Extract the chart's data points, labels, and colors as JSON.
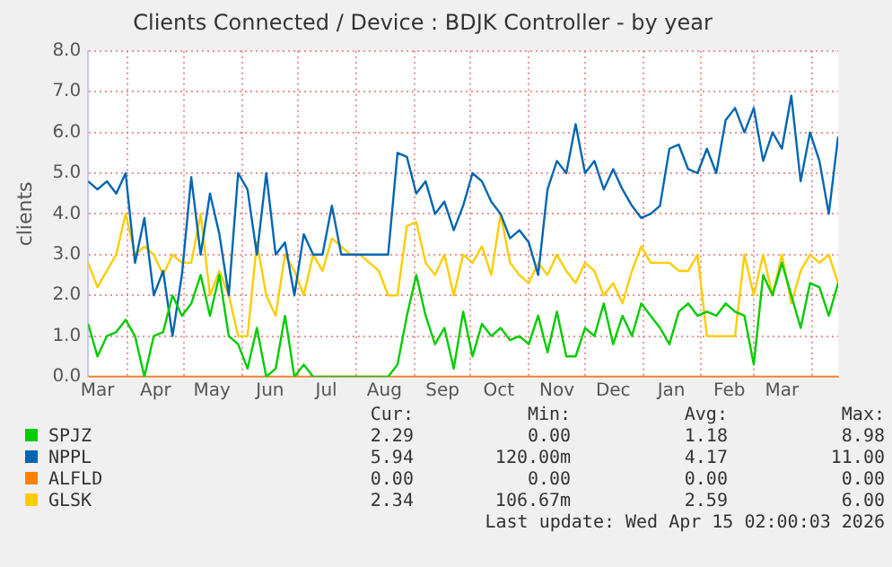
{
  "chart_data": {
    "type": "line",
    "title": "Clients Connected / Device : BDJK Controller - by year",
    "ylabel": "clients",
    "x": [
      "2025-03-11",
      "2025-03-16",
      "2025-03-21",
      "2025-03-26",
      "2025-03-31",
      "2025-04-05",
      "2025-04-10",
      "2025-04-15",
      "2025-04-20",
      "2025-04-25",
      "2025-04-30",
      "2025-05-05",
      "2025-05-10",
      "2025-05-15",
      "2025-05-20",
      "2025-05-25",
      "2025-05-30",
      "2025-06-04",
      "2025-06-09",
      "2025-06-14",
      "2025-06-19",
      "2025-06-24",
      "2025-06-29",
      "2025-07-04",
      "2025-07-09",
      "2025-07-14",
      "2025-07-19",
      "2025-07-24",
      "2025-07-29",
      "2025-08-03",
      "2025-08-08",
      "2025-08-13",
      "2025-08-18",
      "2025-08-23",
      "2025-08-28",
      "2025-09-02",
      "2025-09-07",
      "2025-09-12",
      "2025-09-17",
      "2025-09-22",
      "2025-09-27",
      "2025-10-02",
      "2025-10-07",
      "2025-10-12",
      "2025-10-17",
      "2025-10-22",
      "2025-10-27",
      "2025-11-01",
      "2025-11-06",
      "2025-11-11",
      "2025-11-16",
      "2025-11-21",
      "2025-11-26",
      "2025-12-01",
      "2025-12-06",
      "2025-12-11",
      "2025-12-16",
      "2025-12-21",
      "2025-12-26",
      "2025-12-31",
      "2026-01-05",
      "2026-01-10",
      "2026-01-15",
      "2026-01-20",
      "2026-01-25",
      "2026-01-30",
      "2026-02-04",
      "2026-02-09",
      "2026-02-14",
      "2026-02-19",
      "2026-02-24",
      "2026-03-01",
      "2026-03-06",
      "2026-03-11",
      "2026-03-16",
      "2026-03-21",
      "2026-03-26",
      "2026-03-31",
      "2026-04-05",
      "2026-04-10",
      "2026-04-15"
    ],
    "series": [
      {
        "name": "SPJZ",
        "color": "#00cc00",
        "values": [
          1.3,
          0.5,
          1.0,
          1.1,
          1.4,
          1.0,
          0.0,
          1.0,
          1.1,
          2.0,
          1.5,
          1.8,
          2.5,
          1.5,
          2.5,
          1.0,
          0.8,
          0.2,
          1.2,
          0.0,
          0.2,
          1.5,
          0.0,
          0.3,
          0.0,
          0.0,
          0.0,
          0.0,
          0.0,
          0.0,
          0.0,
          0.0,
          0.0,
          0.3,
          1.5,
          2.5,
          1.5,
          0.8,
          1.2,
          0.2,
          1.6,
          0.5,
          1.3,
          1.0,
          1.2,
          0.9,
          1.0,
          0.8,
          1.5,
          0.6,
          1.6,
          0.5,
          0.5,
          1.2,
          1.0,
          1.8,
          0.8,
          1.5,
          1.0,
          1.8,
          1.5,
          1.2,
          0.8,
          1.6,
          1.8,
          1.5,
          1.6,
          1.5,
          1.8,
          1.6,
          1.5,
          0.3,
          2.5,
          2.0,
          2.8,
          2.0,
          1.2,
          2.3,
          2.2,
          1.5,
          2.3
        ]
      },
      {
        "name": "NPPL",
        "color": "#0066b3",
        "values": [
          4.8,
          4.6,
          4.8,
          4.5,
          5.0,
          2.8,
          3.9,
          2.0,
          2.6,
          1.0,
          2.5,
          4.9,
          3.0,
          4.5,
          3.5,
          2.0,
          5.0,
          4.6,
          3.0,
          5.0,
          3.0,
          3.3,
          2.0,
          3.5,
          3.0,
          3.0,
          4.2,
          3.0,
          3.0,
          3.0,
          3.0,
          3.0,
          3.0,
          5.5,
          5.4,
          4.5,
          4.8,
          4.0,
          4.3,
          3.6,
          4.2,
          5.0,
          4.8,
          4.3,
          4.0,
          3.4,
          3.6,
          3.3,
          2.5,
          4.6,
          5.3,
          5.0,
          6.2,
          5.0,
          5.3,
          4.6,
          5.1,
          4.6,
          4.2,
          3.9,
          4.0,
          4.2,
          5.6,
          5.7,
          5.1,
          5.0,
          5.6,
          5.0,
          6.3,
          6.6,
          6.0,
          6.6,
          5.3,
          6.0,
          5.6,
          6.9,
          4.8,
          6.0,
          5.3,
          4.0,
          5.9
        ]
      },
      {
        "name": "ALFLD",
        "color": "#ff8000",
        "values": [
          0,
          0,
          0,
          0,
          0,
          0,
          0,
          0,
          0,
          0,
          0,
          0,
          0,
          0,
          0,
          0,
          0,
          0,
          0,
          0,
          0,
          0,
          0,
          0,
          0,
          0,
          0,
          0,
          0,
          0,
          0,
          0,
          0,
          0,
          0,
          0,
          0,
          0,
          0,
          0,
          0,
          0,
          0,
          0,
          0,
          0,
          0,
          0,
          0,
          0,
          0,
          0,
          0,
          0,
          0,
          0,
          0,
          0,
          0,
          0,
          0,
          0,
          0,
          0,
          0,
          0,
          0,
          0,
          0,
          0,
          0,
          0,
          0,
          0,
          0,
          0,
          0,
          0,
          0,
          0,
          0
        ]
      },
      {
        "name": "GLSK",
        "color": "#ffcc00",
        "values": [
          2.8,
          2.2,
          2.6,
          3.0,
          4.0,
          3.0,
          3.2,
          3.0,
          2.5,
          3.0,
          2.8,
          2.8,
          4.0,
          2.0,
          2.6,
          2.0,
          1.0,
          1.0,
          3.3,
          2.0,
          1.5,
          3.0,
          2.6,
          2.0,
          3.0,
          2.6,
          3.4,
          3.2,
          3.0,
          3.0,
          2.8,
          2.6,
          2.0,
          2.0,
          3.7,
          3.8,
          2.8,
          2.5,
          3.0,
          2.0,
          3.0,
          2.8,
          3.2,
          2.5,
          4.0,
          2.8,
          2.5,
          2.3,
          2.8,
          2.5,
          3.0,
          2.6,
          2.3,
          2.8,
          2.6,
          2.0,
          2.3,
          1.8,
          2.6,
          3.2,
          2.8,
          2.8,
          2.8,
          2.6,
          2.6,
          3.0,
          1.0,
          1.0,
          1.0,
          1.0,
          3.0,
          2.0,
          3.0,
          2.0,
          3.0,
          1.8,
          2.6,
          3.0,
          2.8,
          3.0,
          2.3
        ]
      }
    ],
    "xlim": [
      "2025-03-11",
      "2026-04-15"
    ],
    "xticks": [
      {
        "value": "2025-03-16",
        "label": "Mar"
      },
      {
        "value": "2025-04-01",
        "label": null
      },
      {
        "value": "2025-04-16",
        "label": "Apr"
      },
      {
        "value": "2025-05-01",
        "label": null
      },
      {
        "value": "2025-05-16",
        "label": "May"
      },
      {
        "value": "2025-06-01",
        "label": null
      },
      {
        "value": "2025-06-16",
        "label": "Jun"
      },
      {
        "value": "2025-07-01",
        "label": null
      },
      {
        "value": "2025-07-16",
        "label": "Jul"
      },
      {
        "value": "2025-08-01",
        "label": null
      },
      {
        "value": "2025-08-16",
        "label": "Aug"
      },
      {
        "value": "2025-09-01",
        "label": null
      },
      {
        "value": "2025-09-16",
        "label": "Sep"
      },
      {
        "value": "2025-10-01",
        "label": null
      },
      {
        "value": "2025-10-16",
        "label": "Oct"
      },
      {
        "value": "2025-11-01",
        "label": null
      },
      {
        "value": "2025-11-16",
        "label": "Nov"
      },
      {
        "value": "2025-12-01",
        "label": null
      },
      {
        "value": "2025-12-16",
        "label": "Dec"
      },
      {
        "value": "2026-01-01",
        "label": null
      },
      {
        "value": "2026-01-16",
        "label": "Jan"
      },
      {
        "value": "2026-02-01",
        "label": null
      },
      {
        "value": "2026-02-16",
        "label": "Feb"
      },
      {
        "value": "2026-03-01",
        "label": null
      },
      {
        "value": "2026-03-16",
        "label": "Mar"
      },
      {
        "value": "2026-04-01",
        "label": null
      }
    ],
    "ylim": [
      0,
      8
    ],
    "yticks": [
      {
        "value": 0,
        "label": "0.0"
      },
      {
        "value": 1,
        "label": "1.0"
      },
      {
        "value": 2,
        "label": "2.0"
      },
      {
        "value": 3,
        "label": "3.0"
      },
      {
        "value": 4,
        "label": "4.0"
      },
      {
        "value": 5,
        "label": "5.0"
      },
      {
        "value": 6,
        "label": "6.0"
      },
      {
        "value": 7,
        "label": "7.0"
      },
      {
        "value": 8,
        "label": "8.0"
      }
    ],
    "grid": true,
    "legend": "bottom",
    "marker": "none",
    "line_style": "solid",
    "annotations": [
      "Cur:",
      "Min:",
      "Avg:",
      "Max:",
      "2.29",
      "0.00",
      "1.18",
      "8.98",
      "5.94",
      "120.00m",
      "4.17",
      "11.00",
      "0.00",
      "0.00",
      "0.00",
      "0.00",
      "2.34",
      "106.67m",
      "2.59",
      "6.00",
      "Last update: Wed Apr 15 02:00:03 2026"
    ]
  }
}
